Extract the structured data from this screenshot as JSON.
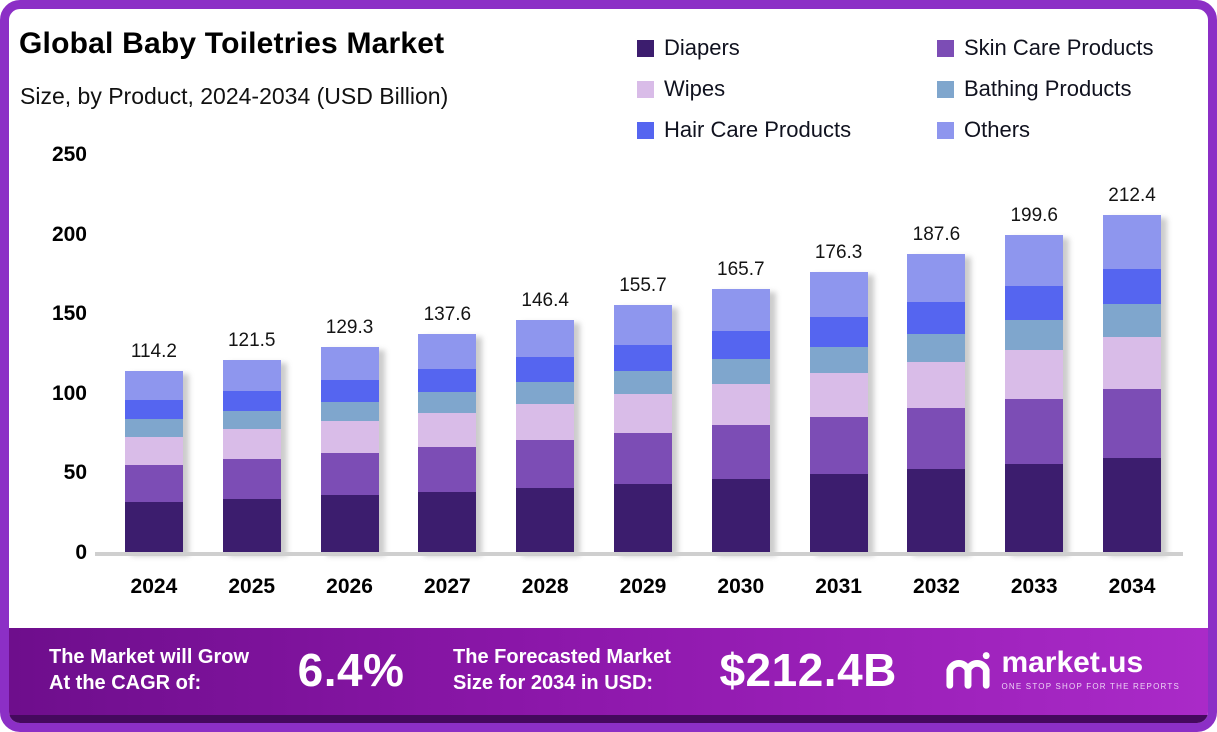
{
  "header": {
    "title": "Global Baby Toiletries Market",
    "subtitle": "Size, by Product, 2024-2034 (USD Billion)"
  },
  "chart_data": {
    "type": "bar",
    "subtype": "stacked",
    "title": "Global Baby Toiletries Market Size, by Product, 2024-2034 (USD Billion)",
    "categories": [
      "2024",
      "2025",
      "2026",
      "2027",
      "2028",
      "2029",
      "2030",
      "2031",
      "2032",
      "2033",
      "2034"
    ],
    "totals": [
      114.2,
      121.5,
      129.3,
      137.6,
      146.4,
      155.7,
      165.7,
      176.3,
      187.6,
      199.6,
      212.4
    ],
    "series": [
      {
        "name": "Diapers",
        "color": "#3c1d6e",
        "values": [
          32.0,
          34.0,
          36.2,
          38.5,
          41.0,
          43.6,
          46.4,
          49.4,
          52.5,
          55.9,
          59.5
        ]
      },
      {
        "name": "Skin Care Products",
        "color": "#7c4db5",
        "values": [
          23.4,
          24.9,
          26.5,
          28.2,
          30.0,
          31.9,
          34.0,
          36.1,
          38.5,
          40.9,
          43.5
        ]
      },
      {
        "name": "Wipes",
        "color": "#d9bce8",
        "values": [
          17.7,
          18.8,
          20.0,
          21.3,
          22.7,
          24.1,
          25.7,
          27.3,
          29.1,
          30.9,
          32.9
        ]
      },
      {
        "name": "Bathing Products",
        "color": "#7fa6cd",
        "values": [
          10.8,
          11.5,
          12.3,
          13.1,
          13.9,
          14.8,
          15.7,
          16.7,
          17.8,
          19.0,
          20.2
        ]
      },
      {
        "name": "Hair Care Products",
        "color": "#5565f0",
        "values": [
          12.0,
          12.8,
          13.6,
          14.4,
          15.4,
          16.4,
          17.4,
          18.5,
          19.7,
          21.0,
          22.3
        ]
      },
      {
        "name": "Others",
        "color": "#8e96ee",
        "values": [
          18.3,
          19.5,
          20.7,
          22.1,
          23.4,
          24.9,
          26.5,
          28.3,
          30.0,
          31.9,
          34.0
        ]
      }
    ],
    "yticks": [
      0,
      50,
      100,
      150,
      200,
      250
    ],
    "ylim": [
      0,
      250
    ],
    "xlabel": "",
    "ylabel": "",
    "grid": false,
    "legend_position": "top-right"
  },
  "banner": {
    "cagr_label_line1": "The Market will Grow",
    "cagr_label_line2": "At the CAGR of:",
    "cagr_value": "6.4%",
    "forecast_label_line1": "The Forecasted Market",
    "forecast_label_line2": "Size for 2034 in USD:",
    "forecast_value": "$212.4B",
    "brand": "market.us",
    "brand_tagline": "ONE STOP SHOP FOR THE REPORTS"
  }
}
